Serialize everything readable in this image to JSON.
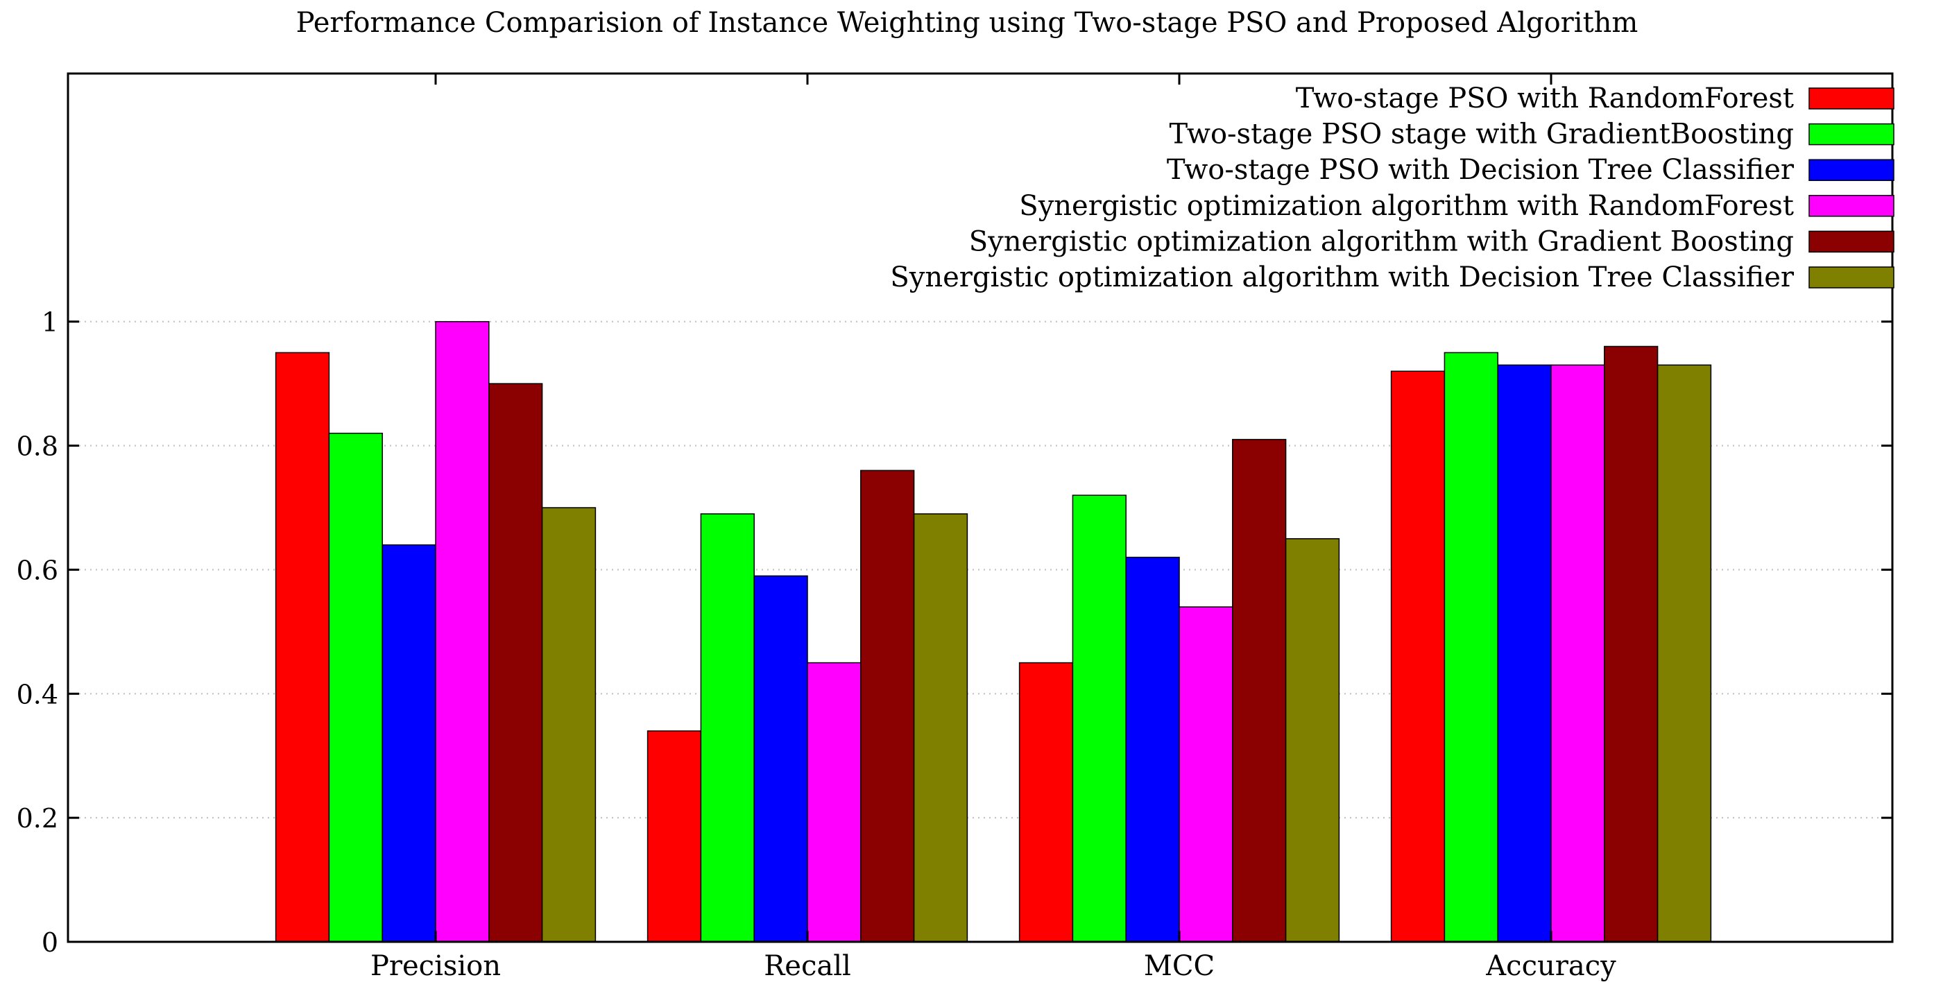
{
  "chart_data": {
    "type": "bar",
    "title": "Performance Comparision of Instance Weighting  using Two-stage PSO and Proposed Algorithm",
    "xlabel": "",
    "ylabel": "",
    "ylim": [
      0,
      1.4
    ],
    "yticks": [
      0,
      0.2,
      0.4,
      0.6,
      0.8,
      1
    ],
    "ytick_labels": [
      "0",
      "0.2",
      "0.4",
      "0.6",
      "0.8",
      "1"
    ],
    "grid": true,
    "legend_position": "top-right",
    "categories": [
      "Precision",
      "Recall",
      "MCC",
      "Accuracy"
    ],
    "series": [
      {
        "name": "Two-stage PSO with RandomForest",
        "color": "#ff0000",
        "values": [
          0.95,
          0.34,
          0.45,
          0.92
        ]
      },
      {
        "name": "Two-stage PSO stage with GradientBoosting",
        "color": "#00ff00",
        "values": [
          0.82,
          0.69,
          0.72,
          0.95
        ]
      },
      {
        "name": "Two-stage PSO  with Decision Tree Classifier",
        "color": "#0000ff",
        "values": [
          0.64,
          0.59,
          0.62,
          0.93
        ]
      },
      {
        "name": "Synergistic optimization algorithm with RandomForest",
        "color": "#ff00ff",
        "values": [
          1.0,
          0.45,
          0.54,
          0.93
        ]
      },
      {
        "name": "Synergistic optimization algorithm with Gradient Boosting",
        "color": "#8b0000",
        "values": [
          0.9,
          0.76,
          0.81,
          0.96
        ]
      },
      {
        "name": "Synergistic optimization algorithm with Decision Tree Classifier",
        "color": "#808000",
        "values": [
          0.7,
          0.69,
          0.65,
          0.93
        ]
      }
    ]
  }
}
